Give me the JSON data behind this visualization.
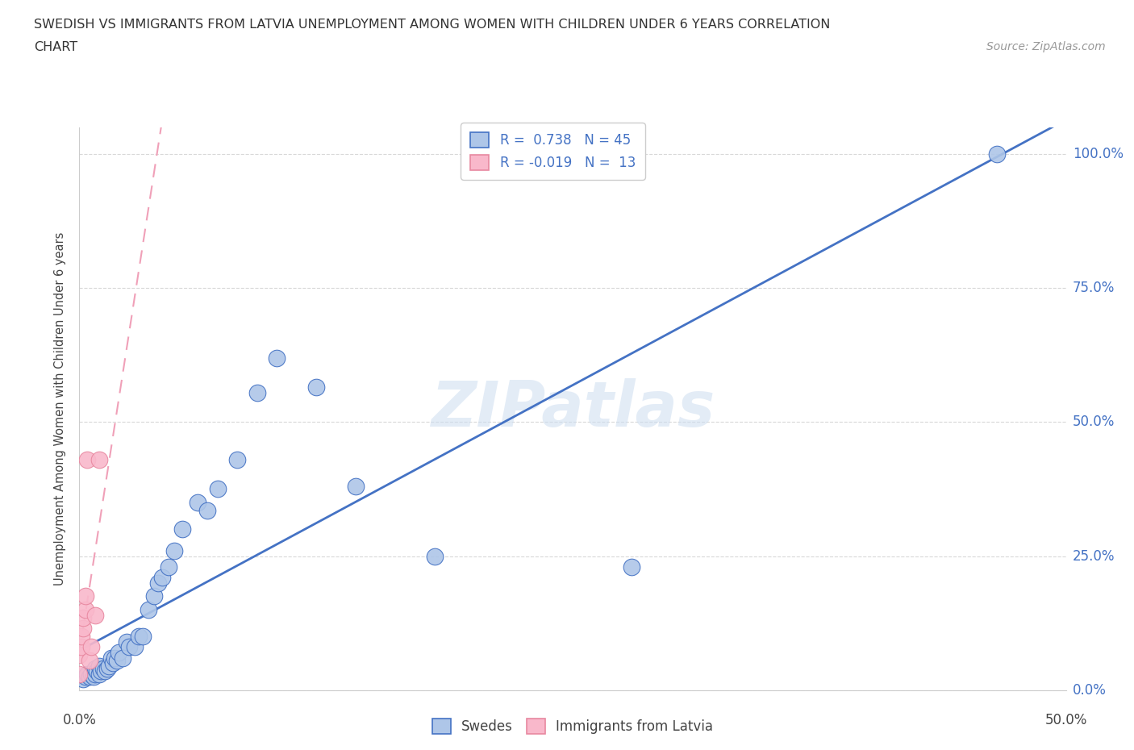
{
  "title_line1": "SWEDISH VS IMMIGRANTS FROM LATVIA UNEMPLOYMENT AMONG WOMEN WITH CHILDREN UNDER 6 YEARS CORRELATION",
  "title_line2": "CHART",
  "source_text": "Source: ZipAtlas.com",
  "ylabel": "Unemployment Among Women with Children Under 6 years",
  "watermark": "ZIPatlas",
  "swedes_R": 0.738,
  "swedes_N": 45,
  "latvia_R": -0.019,
  "latvia_N": 13,
  "swedes_color": "#aec6e8",
  "latvia_color": "#f9b8cb",
  "swedes_line_color": "#4472c4",
  "latvia_line_color": "#f4a7b9",
  "background_color": "#ffffff",
  "grid_color": "#d8d8d8",
  "ytick_labels": [
    "0.0%",
    "25.0%",
    "50.0%",
    "75.0%",
    "100.0%"
  ],
  "ytick_vals": [
    0.0,
    0.25,
    0.5,
    0.75,
    1.0
  ],
  "xlim": [
    0.0,
    0.5
  ],
  "ylim": [
    0.0,
    1.05
  ],
  "swedes_x": [
    0.002,
    0.003,
    0.004,
    0.005,
    0.006,
    0.007,
    0.008,
    0.008,
    0.009,
    0.01,
    0.01,
    0.011,
    0.012,
    0.013,
    0.014,
    0.015,
    0.016,
    0.017,
    0.018,
    0.019,
    0.02,
    0.022,
    0.024,
    0.025,
    0.028,
    0.03,
    0.032,
    0.035,
    0.038,
    0.04,
    0.042,
    0.045,
    0.048,
    0.052,
    0.06,
    0.065,
    0.07,
    0.08,
    0.09,
    0.1,
    0.12,
    0.14,
    0.18,
    0.28,
    0.465
  ],
  "swedes_y": [
    0.02,
    0.025,
    0.03,
    0.025,
    0.03,
    0.025,
    0.03,
    0.04,
    0.035,
    0.03,
    0.045,
    0.035,
    0.04,
    0.035,
    0.04,
    0.045,
    0.06,
    0.05,
    0.06,
    0.055,
    0.07,
    0.06,
    0.09,
    0.08,
    0.08,
    0.1,
    0.1,
    0.15,
    0.175,
    0.2,
    0.21,
    0.23,
    0.26,
    0.3,
    0.35,
    0.335,
    0.375,
    0.43,
    0.555,
    0.62,
    0.565,
    0.38,
    0.25,
    0.23,
    1.0
  ],
  "latvia_x": [
    0.0,
    0.0,
    0.001,
    0.001,
    0.002,
    0.002,
    0.003,
    0.003,
    0.004,
    0.005,
    0.006,
    0.008,
    0.01
  ],
  "latvia_y": [
    0.03,
    0.065,
    0.08,
    0.1,
    0.115,
    0.135,
    0.15,
    0.175,
    0.43,
    0.055,
    0.08,
    0.14,
    0.43
  ]
}
